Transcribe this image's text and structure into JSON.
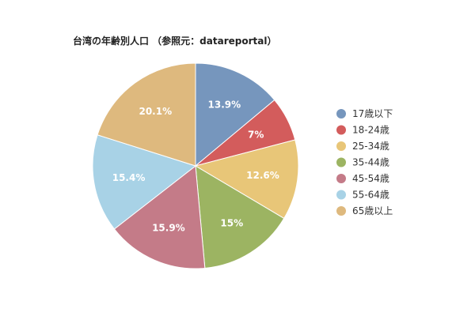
{
  "chart_data": {
    "type": "pie",
    "title": "台湾の年齢別人口 （参照元：datareportal）",
    "categories": [
      "17歳以下",
      "18-24歳",
      "25-34歳",
      "35-44歳",
      "45-54歳",
      "55-64歳",
      "65歳以上"
    ],
    "values": [
      13.9,
      7,
      12.6,
      15,
      15.9,
      15.4,
      20.1
    ],
    "labels": [
      "13.9%",
      "7%",
      "12.6%",
      "15%",
      "15.9%",
      "15.4%",
      "20.1%"
    ],
    "colors": [
      "#7696bd",
      "#d35c5c",
      "#e8c678",
      "#9cb462",
      "#c47b88",
      "#a8d2e6",
      "#deb97e"
    ],
    "legend_position": "right",
    "start_angle": "top, clockwise"
  }
}
